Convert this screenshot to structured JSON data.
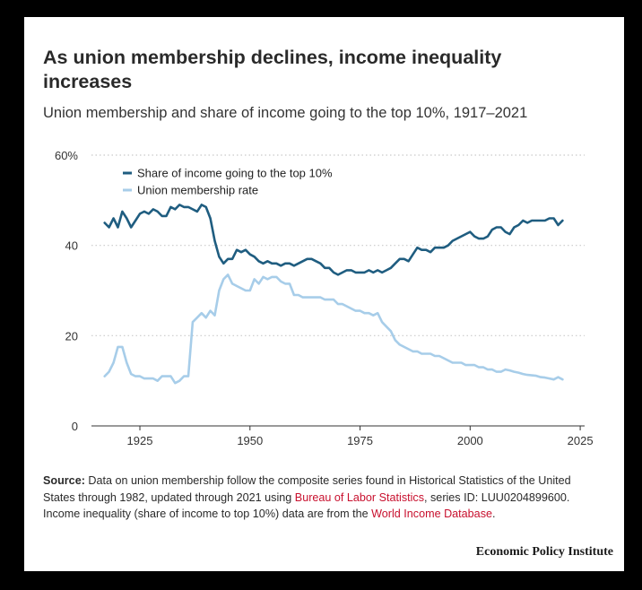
{
  "title": "As union membership declines, income inequality increases",
  "subtitle": "Union membership and share of income going to the top 10%, 1917–2021",
  "source": {
    "label": "Source:",
    "text1": " Data on union membership follow the composite series found in Historical Statistics of the United States through 1982, updated through 2021 using ",
    "link1": "Bureau of Labor Statistics",
    "text2": ", series ID: LUU0204899600. Income inequality (share of income to top 10%) data are from the ",
    "link2": "World Income Database",
    "text3": "."
  },
  "credit": "Economic Policy Institute",
  "colors": {
    "top10": "#1f5d80",
    "union": "#a7cde9",
    "grid": "#c9c9c9",
    "text": "#333333"
  },
  "chart_data": {
    "type": "line",
    "xlim": [
      1914,
      2026
    ],
    "ylim": [
      0,
      60
    ],
    "xticks": [
      1925,
      1950,
      1975,
      2000,
      2025
    ],
    "yticks": [
      0,
      20,
      40,
      60
    ],
    "ytick_labels": [
      "0",
      "20",
      "40",
      "60%"
    ],
    "grid": "horizontal-dotted",
    "legend": "top-left",
    "series": [
      {
        "name": "Share of income going to the top 10%",
        "key": "top10",
        "x": [
          1917,
          1918,
          1919,
          1920,
          1921,
          1922,
          1923,
          1924,
          1925,
          1926,
          1927,
          1928,
          1929,
          1930,
          1931,
          1932,
          1933,
          1934,
          1935,
          1936,
          1937,
          1938,
          1939,
          1940,
          1941,
          1942,
          1943,
          1944,
          1945,
          1946,
          1947,
          1948,
          1949,
          1950,
          1951,
          1952,
          1953,
          1954,
          1955,
          1956,
          1957,
          1958,
          1959,
          1960,
          1961,
          1962,
          1963,
          1964,
          1965,
          1966,
          1967,
          1968,
          1969,
          1970,
          1971,
          1972,
          1973,
          1974,
          1975,
          1976,
          1977,
          1978,
          1979,
          1980,
          1981,
          1982,
          1983,
          1984,
          1985,
          1986,
          1987,
          1988,
          1989,
          1990,
          1991,
          1992,
          1993,
          1994,
          1995,
          1996,
          1997,
          1998,
          1999,
          2000,
          2001,
          2002,
          2003,
          2004,
          2005,
          2006,
          2007,
          2008,
          2009,
          2010,
          2011,
          2012,
          2013,
          2014,
          2015,
          2016,
          2017,
          2018,
          2019,
          2020,
          2021
        ],
        "values": [
          45,
          44,
          46,
          44,
          47.5,
          46,
          44,
          45.5,
          47,
          47.5,
          47,
          48,
          47.5,
          46.5,
          46.5,
          48.5,
          48,
          49,
          48.5,
          48.5,
          48,
          47.5,
          49,
          48.5,
          46,
          41,
          37.5,
          36,
          37,
          37,
          39,
          38.5,
          39,
          38,
          37.5,
          36.5,
          36,
          36.5,
          36,
          36,
          35.5,
          36,
          36,
          35.5,
          36,
          36.5,
          37,
          37,
          36.5,
          36,
          35,
          35,
          34,
          33.5,
          34,
          34.5,
          34.5,
          34,
          34,
          34,
          34.5,
          34,
          34.5,
          34,
          34.5,
          35,
          36,
          37,
          37,
          36.5,
          38,
          39.5,
          39,
          39,
          38.5,
          39.5,
          39.5,
          39.5,
          40,
          41,
          41.5,
          42,
          42.5,
          43,
          42,
          41.5,
          41.5,
          42,
          43.5,
          44,
          44,
          43,
          42.5,
          44,
          44.5,
          45.5,
          45,
          45.5,
          45.5,
          45.5,
          45.5,
          46,
          46,
          44.5,
          45.5
        ]
      },
      {
        "name": "Union membership rate",
        "key": "union",
        "x": [
          1917,
          1918,
          1919,
          1920,
          1921,
          1922,
          1923,
          1924,
          1925,
          1926,
          1927,
          1928,
          1929,
          1930,
          1931,
          1932,
          1933,
          1934,
          1935,
          1936,
          1937,
          1938,
          1939,
          1940,
          1941,
          1942,
          1943,
          1944,
          1945,
          1946,
          1947,
          1948,
          1949,
          1950,
          1951,
          1952,
          1953,
          1954,
          1955,
          1956,
          1957,
          1958,
          1959,
          1960,
          1961,
          1962,
          1963,
          1964,
          1965,
          1966,
          1967,
          1968,
          1969,
          1970,
          1971,
          1972,
          1973,
          1974,
          1975,
          1976,
          1977,
          1978,
          1979,
          1980,
          1981,
          1982,
          1983,
          1984,
          1985,
          1986,
          1987,
          1988,
          1989,
          1990,
          1991,
          1992,
          1993,
          1994,
          1995,
          1996,
          1997,
          1998,
          1999,
          2000,
          2001,
          2002,
          2003,
          2004,
          2005,
          2006,
          2007,
          2008,
          2009,
          2010,
          2011,
          2012,
          2013,
          2014,
          2015,
          2016,
          2017,
          2018,
          2019,
          2020,
          2021
        ],
        "values": [
          11,
          12,
          14,
          17.5,
          17.5,
          14,
          11.5,
          11,
          11,
          10.5,
          10.5,
          10.5,
          10,
          11,
          11,
          11,
          9.5,
          10,
          11,
          11,
          23,
          24,
          25,
          24,
          25.5,
          24.5,
          30,
          32.5,
          33.5,
          31.5,
          31,
          30.5,
          30,
          30,
          32.5,
          31.5,
          33,
          32.5,
          33,
          33,
          32,
          31.5,
          31.5,
          29,
          29,
          28.5,
          28.5,
          28.5,
          28.5,
          28.5,
          28,
          28,
          28,
          27,
          27,
          26.5,
          26,
          25.5,
          25.5,
          25,
          25,
          24.5,
          25,
          23,
          22,
          21,
          19,
          18,
          17.5,
          17,
          16.5,
          16.5,
          16,
          16,
          16,
          15.5,
          15.5,
          15,
          14.5,
          14,
          14,
          14,
          13.5,
          13.5,
          13.5,
          13,
          13,
          12.5,
          12.5,
          12,
          12,
          12.5,
          12.3,
          12,
          11.8,
          11.5,
          11.3,
          11.2,
          11.1,
          10.8,
          10.7,
          10.5,
          10.3,
          10.8,
          10.3
        ]
      }
    ]
  }
}
